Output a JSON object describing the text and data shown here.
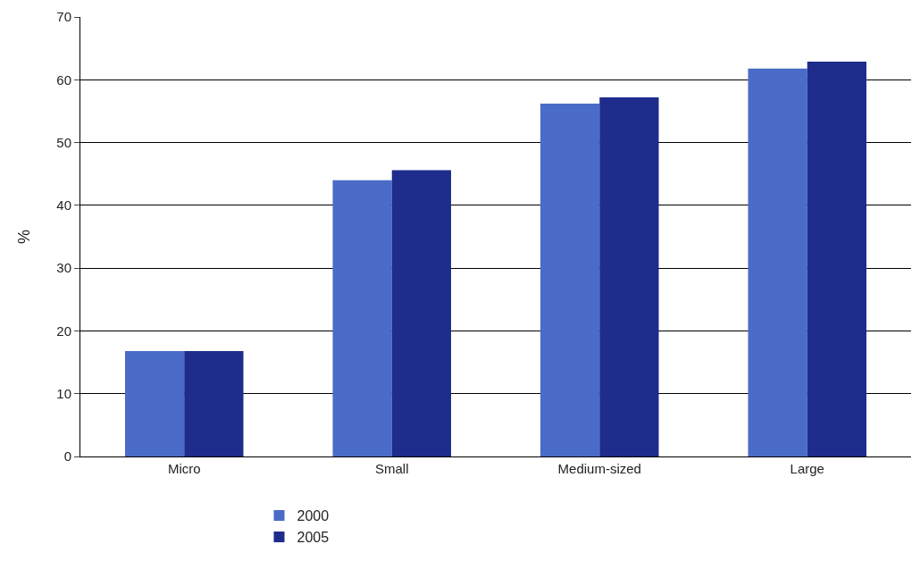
{
  "chart_data": {
    "type": "bar",
    "ylabel": "%",
    "categories": [
      "Micro",
      "Small",
      "Medium-sized",
      "Large"
    ],
    "series": [
      {
        "name": "2000",
        "color": "#4a6cc8",
        "values": [
          16.8,
          44.0,
          56.2,
          61.8
        ]
      },
      {
        "name": "2005",
        "color": "#1e2c8c",
        "values": [
          16.8,
          45.6,
          57.2,
          62.9
        ]
      }
    ],
    "ylim": [
      0,
      70
    ],
    "yticks": [
      0,
      10,
      20,
      30,
      40,
      50,
      60,
      70
    ],
    "grid": "y",
    "legend": "bottom"
  }
}
